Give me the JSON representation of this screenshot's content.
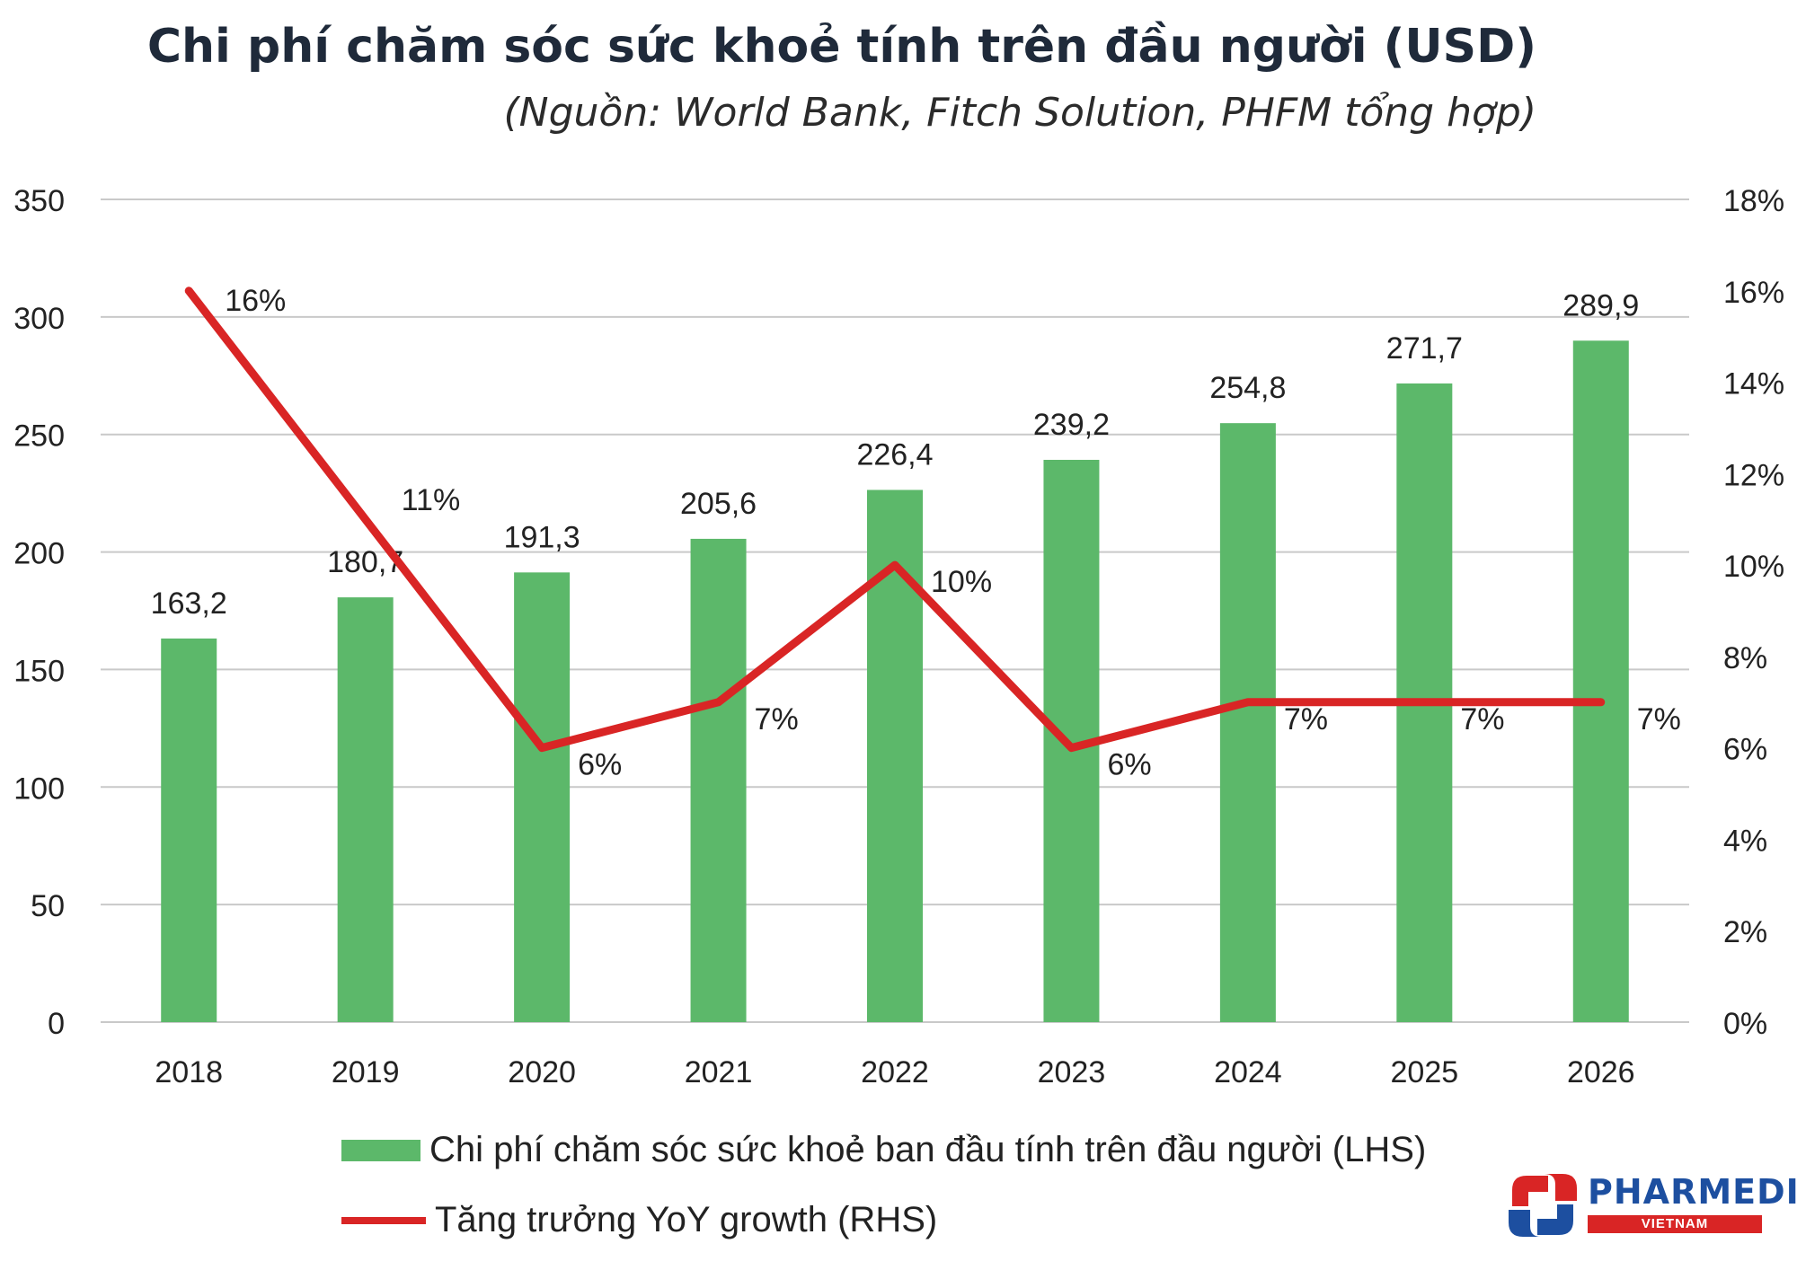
{
  "title": "Chi phí chăm sóc sức khoẻ tính trên đầu người (USD)",
  "subtitle": "(Nguồn: World Bank, Fitch Solution, PHFM tổng hợp)",
  "colors": {
    "bar": "#5cb86a",
    "line": "#d92525",
    "grid": "#c9c9c9",
    "text": "#222222"
  },
  "chart_data": {
    "type": "bar",
    "title": "Chi phí chăm sóc sức khoẻ tính trên đầu người (USD)",
    "categories": [
      "2018",
      "2019",
      "2020",
      "2021",
      "2022",
      "2023",
      "2024",
      "2025",
      "2026"
    ],
    "series": [
      {
        "name": "Chi phí chăm sóc sức khoẻ ban đầu tính trên đầu người (LHS)",
        "type": "bar",
        "axis": "left",
        "values": [
          163.2,
          180.7,
          191.3,
          205.6,
          226.4,
          239.2,
          254.8,
          271.7,
          289.9
        ],
        "labels": [
          "163,2",
          "180,7",
          "191,3",
          "205,6",
          "226,4",
          "239,2",
          "254,8",
          "271,7",
          "289,9"
        ]
      },
      {
        "name": "Tăng trưởng YoY growth (RHS)",
        "type": "line",
        "axis": "right",
        "values": [
          16,
          11,
          6,
          7,
          10,
          6,
          7,
          7,
          7
        ],
        "labels": [
          "16%",
          "11%",
          "6%",
          "7%",
          "10%",
          "6%",
          "7%",
          "7%",
          "7%"
        ]
      }
    ],
    "y_left": {
      "min": 0,
      "max": 350,
      "ticks": [
        "0",
        "50",
        "100",
        "150",
        "200",
        "250",
        "300",
        "350"
      ]
    },
    "y_right": {
      "min": 0,
      "max": 18,
      "ticks": [
        "0%",
        "2%",
        "4%",
        "6%",
        "8%",
        "10%",
        "12%",
        "14%",
        "16%",
        "18%"
      ]
    },
    "grid": true,
    "legend_position": "bottom"
  },
  "legend": {
    "bar_label": "Chi phí chăm sóc sức khoẻ ban đầu tính trên đầu người (LHS)",
    "line_label": "Tăng trưởng YoY growth (RHS)"
  },
  "logo": {
    "name": "PHARMEDI",
    "sub": "VIETNAM"
  }
}
